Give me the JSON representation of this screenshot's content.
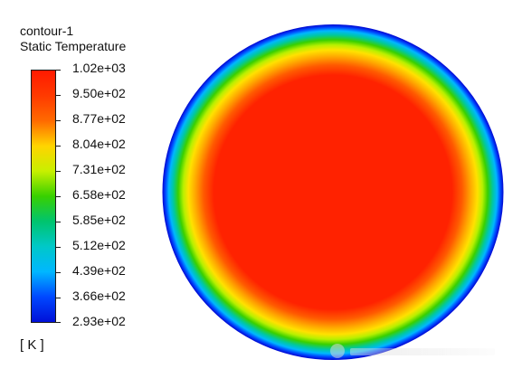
{
  "legend": {
    "title_line1": "contour-1",
    "title_line2": "Static Temperature",
    "units": "[ K ]",
    "ticks": [
      "1.02e+03",
      "9.50e+02",
      "8.77e+02",
      "8.04e+02",
      "7.31e+02",
      "6.58e+02",
      "5.85e+02",
      "5.12e+02",
      "4.39e+02",
      "3.66e+02",
      "2.93e+02"
    ],
    "colors": {
      "max": "#ff1a00",
      "high": "#ff6a00",
      "upper_mid": "#ffd400",
      "mid": "#38d000",
      "lower_mid": "#00c8c8",
      "low": "#0048ff",
      "min": "#0010d8"
    }
  },
  "plot": {
    "field": "Static Temperature",
    "core_color": "#ff2200",
    "ring_colors": [
      "#ff2200",
      "#ff6a00",
      "#ffd400",
      "#b8f000",
      "#39d000",
      "#00c8a0",
      "#00b7ff",
      "#0048ff",
      "#0010d8"
    ]
  }
}
